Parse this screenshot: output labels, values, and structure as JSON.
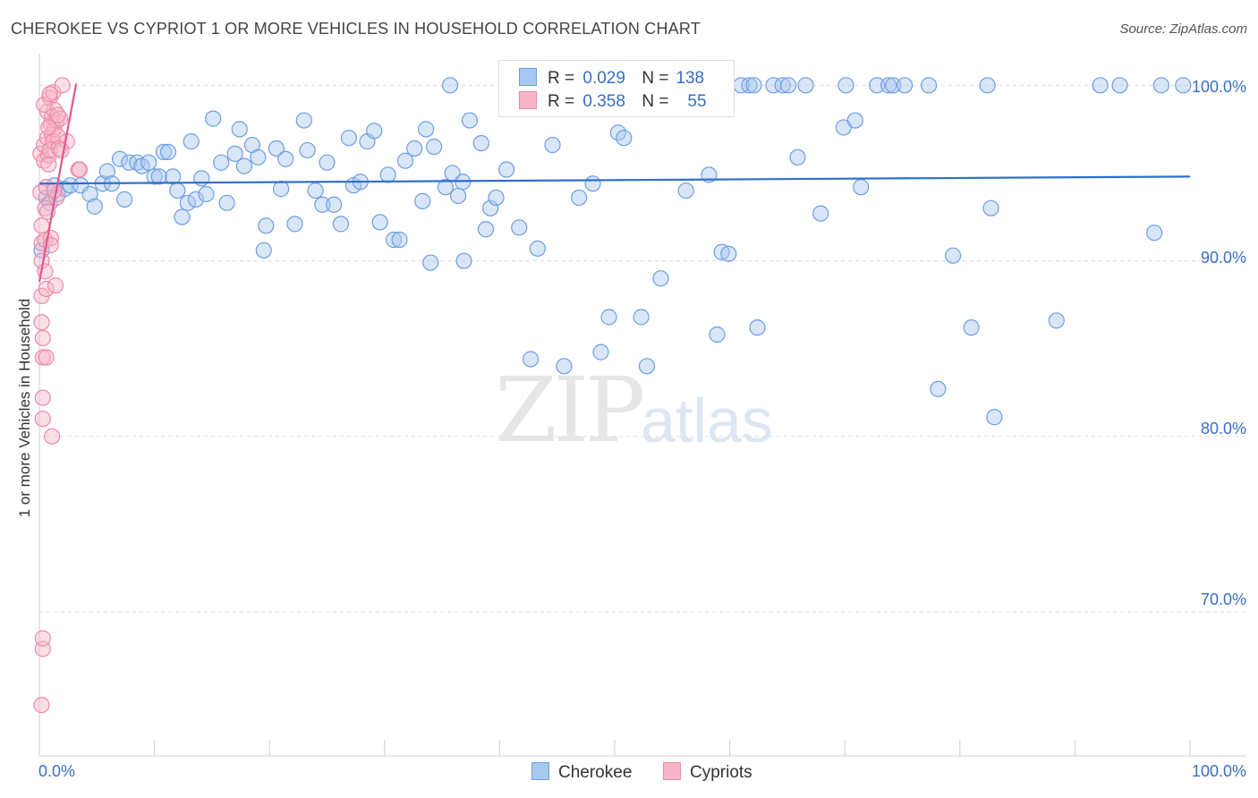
{
  "header": {
    "title": "CHEROKEE VS CYPRIOT 1 OR MORE VEHICLES IN HOUSEHOLD CORRELATION CHART",
    "source": "Source: ZipAtlas.com"
  },
  "watermark": {
    "zip": "ZIP",
    "atlas": "atlas"
  },
  "legend": {
    "rows": [
      {
        "r_label": "R = ",
        "r_value": "0.029",
        "n_label": "N = ",
        "n_value": "138"
      },
      {
        "r_label": "R = ",
        "r_value": "0.358",
        "n_label": "N = ",
        "n_value": "55"
      }
    ]
  },
  "bottom_legend": {
    "cherokee": "Cherokee",
    "cypriots": "Cypriots"
  },
  "axis": {
    "ylabel": "1 or more Vehicles in Household",
    "x_min_label": "0.0%",
    "x_max_label": "100.0%",
    "y_ticks": [
      "100.0%",
      "90.0%",
      "80.0%",
      "70.0%"
    ]
  },
  "colors": {
    "cherokee_fill": "#a8c8f0",
    "cherokee_stroke": "#6d9ee0",
    "cherokee_line": "#2f6fc9",
    "cypriot_fill": "#f7b6c8",
    "cypriot_stroke": "#ec8aa8",
    "cypriot_line": "#e2588a"
  },
  "chart_data": {
    "type": "scatter",
    "title": "CHEROKEE VS CYPRIOT 1 OR MORE VEHICLES IN HOUSEHOLD CORRELATION CHART",
    "xlabel": "",
    "ylabel": "1 or more Vehicles in Household",
    "xlim": [
      0,
      100
    ],
    "ylim": [
      61.8,
      101.8
    ],
    "y_ticks": [
      70,
      80,
      90,
      100
    ],
    "series": [
      {
        "name": "Cherokee",
        "R": 0.029,
        "N": 138,
        "trend": [
          [
            0,
            94.4
          ],
          [
            100,
            94.8
          ]
        ],
        "points": [
          [
            0.2,
            90.6
          ],
          [
            0.6,
            93.6
          ],
          [
            0.9,
            93.3
          ],
          [
            1.3,
            94.3
          ],
          [
            1.6,
            93.8
          ],
          [
            2.2,
            94.1
          ],
          [
            2.7,
            94.3
          ],
          [
            3.6,
            94.3
          ],
          [
            4.4,
            93.8
          ],
          [
            4.8,
            93.1
          ],
          [
            5.5,
            94.4
          ],
          [
            5.9,
            95.1
          ],
          [
            6.3,
            94.4
          ],
          [
            7.0,
            95.8
          ],
          [
            7.4,
            93.5
          ],
          [
            7.8,
            95.6
          ],
          [
            8.5,
            95.6
          ],
          [
            8.9,
            95.4
          ],
          [
            9.5,
            95.6
          ],
          [
            10.0,
            94.8
          ],
          [
            10.4,
            94.8
          ],
          [
            10.8,
            96.2
          ],
          [
            11.2,
            96.2
          ],
          [
            11.6,
            94.8
          ],
          [
            12.0,
            94.0
          ],
          [
            12.4,
            92.5
          ],
          [
            12.9,
            93.3
          ],
          [
            13.2,
            96.8
          ],
          [
            13.6,
            93.5
          ],
          [
            14.1,
            94.7
          ],
          [
            14.5,
            93.8
          ],
          [
            15.1,
            98.1
          ],
          [
            15.8,
            95.6
          ],
          [
            16.3,
            93.3
          ],
          [
            17.0,
            96.1
          ],
          [
            17.4,
            97.5
          ],
          [
            17.8,
            95.4
          ],
          [
            18.5,
            96.6
          ],
          [
            19.0,
            95.9
          ],
          [
            19.7,
            92.0
          ],
          [
            19.5,
            90.6
          ],
          [
            20.6,
            96.4
          ],
          [
            21.0,
            94.1
          ],
          [
            21.4,
            95.8
          ],
          [
            22.2,
            92.1
          ],
          [
            23.0,
            98.0
          ],
          [
            23.3,
            96.3
          ],
          [
            24.0,
            94.0
          ],
          [
            24.6,
            93.2
          ],
          [
            25.0,
            95.6
          ],
          [
            25.6,
            93.2
          ],
          [
            26.2,
            92.1
          ],
          [
            26.9,
            97.0
          ],
          [
            27.3,
            94.3
          ],
          [
            27.9,
            94.5
          ],
          [
            28.5,
            96.8
          ],
          [
            29.1,
            97.4
          ],
          [
            29.6,
            92.2
          ],
          [
            30.3,
            94.9
          ],
          [
            30.8,
            91.2
          ],
          [
            31.3,
            91.2
          ],
          [
            31.8,
            95.7
          ],
          [
            32.6,
            96.4
          ],
          [
            33.3,
            93.4
          ],
          [
            33.6,
            97.5
          ],
          [
            34.0,
            89.9
          ],
          [
            34.3,
            96.5
          ],
          [
            35.3,
            94.2
          ],
          [
            35.7,
            100.0
          ],
          [
            35.9,
            95.0
          ],
          [
            36.4,
            93.7
          ],
          [
            36.8,
            94.5
          ],
          [
            36.9,
            90.0
          ],
          [
            37.4,
            98.0
          ],
          [
            38.4,
            96.7
          ],
          [
            38.8,
            91.8
          ],
          [
            39.2,
            93.0
          ],
          [
            39.7,
            93.6
          ],
          [
            40.6,
            95.2
          ],
          [
            41.7,
            91.9
          ],
          [
            42.7,
            84.4
          ],
          [
            43.3,
            90.7
          ],
          [
            44.6,
            96.6
          ],
          [
            45.6,
            84.0
          ],
          [
            46.3,
            99.9
          ],
          [
            46.9,
            93.6
          ],
          [
            47.6,
            99.8
          ],
          [
            48.1,
            94.4
          ],
          [
            48.8,
            84.8
          ],
          [
            49.5,
            86.8
          ],
          [
            50.3,
            97.3
          ],
          [
            50.8,
            97.0
          ],
          [
            51.8,
            100.0
          ],
          [
            52.3,
            86.8
          ],
          [
            52.8,
            84.0
          ],
          [
            54.0,
            89.0
          ],
          [
            56.2,
            94.0
          ],
          [
            58.2,
            94.9
          ],
          [
            58.9,
            85.8
          ],
          [
            59.3,
            90.5
          ],
          [
            59.9,
            90.4
          ],
          [
            61.0,
            100.0
          ],
          [
            61.7,
            100.0
          ],
          [
            62.1,
            100.0
          ],
          [
            62.4,
            86.2
          ],
          [
            63.8,
            100.0
          ],
          [
            64.6,
            100.0
          ],
          [
            65.1,
            100.0
          ],
          [
            65.9,
            95.9
          ],
          [
            66.6,
            100.0
          ],
          [
            67.9,
            92.7
          ],
          [
            69.9,
            97.6
          ],
          [
            70.1,
            100.0
          ],
          [
            70.9,
            98.0
          ],
          [
            71.4,
            94.2
          ],
          [
            72.8,
            100.0
          ],
          [
            73.8,
            100.0
          ],
          [
            74.2,
            100.0
          ],
          [
            75.2,
            100.0
          ],
          [
            77.3,
            100.0
          ],
          [
            78.1,
            82.7
          ],
          [
            79.4,
            90.3
          ],
          [
            81.0,
            86.2
          ],
          [
            82.4,
            100.0
          ],
          [
            82.7,
            93.0
          ],
          [
            83.0,
            81.1
          ],
          [
            88.4,
            86.6
          ],
          [
            92.2,
            100.0
          ],
          [
            93.9,
            100.0
          ],
          [
            96.9,
            91.6
          ],
          [
            97.5,
            100.0
          ],
          [
            99.4,
            100.0
          ]
        ]
      },
      {
        "name": "Cypriots",
        "R": 0.358,
        "N": 55,
        "trend": [
          [
            0,
            88.8
          ],
          [
            3.2,
            100.1
          ]
        ],
        "points": [
          [
            0.1,
            96.1
          ],
          [
            0.1,
            93.9
          ],
          [
            0.2,
            91.0
          ],
          [
            0.2,
            90.0
          ],
          [
            0.2,
            88.0
          ],
          [
            0.2,
            86.5
          ],
          [
            0.3,
            85.6
          ],
          [
            0.3,
            84.5
          ],
          [
            0.3,
            82.2
          ],
          [
            0.3,
            81.0
          ],
          [
            0.2,
            64.7
          ],
          [
            0.3,
            67.9
          ],
          [
            0.3,
            68.5
          ],
          [
            0.4,
            96.6
          ],
          [
            0.4,
            95.7
          ],
          [
            0.5,
            93.0
          ],
          [
            0.5,
            91.2
          ],
          [
            0.6,
            88.4
          ],
          [
            0.6,
            84.5
          ],
          [
            0.7,
            98.5
          ],
          [
            0.7,
            97.0
          ],
          [
            0.8,
            96.0
          ],
          [
            0.8,
            95.5
          ],
          [
            0.9,
            99.3
          ],
          [
            0.9,
            96.3
          ],
          [
            1.0,
            97.8
          ],
          [
            1.0,
            91.3
          ],
          [
            1.1,
            98.2
          ],
          [
            1.1,
            97.2
          ],
          [
            1.2,
            99.6
          ],
          [
            1.2,
            96.8
          ],
          [
            1.3,
            98.6
          ],
          [
            1.3,
            97.5
          ],
          [
            1.4,
            88.6
          ],
          [
            1.5,
            98.0
          ],
          [
            1.6,
            97.1
          ],
          [
            1.7,
            96.4
          ],
          [
            1.8,
            98.1
          ],
          [
            1.1,
            80.0
          ],
          [
            2.0,
            100.0
          ],
          [
            2.4,
            96.8
          ],
          [
            3.4,
            95.2
          ],
          [
            3.5,
            95.2
          ],
          [
            1.5,
            93.6
          ],
          [
            0.5,
            89.4
          ],
          [
            0.7,
            92.8
          ],
          [
            1.9,
            96.3
          ],
          [
            0.4,
            98.9
          ],
          [
            0.6,
            94.2
          ],
          [
            1.0,
            90.9
          ],
          [
            0.9,
            99.5
          ],
          [
            1.3,
            94.0
          ],
          [
            0.2,
            92.0
          ],
          [
            0.8,
            97.6
          ],
          [
            1.6,
            98.3
          ]
        ]
      }
    ]
  }
}
